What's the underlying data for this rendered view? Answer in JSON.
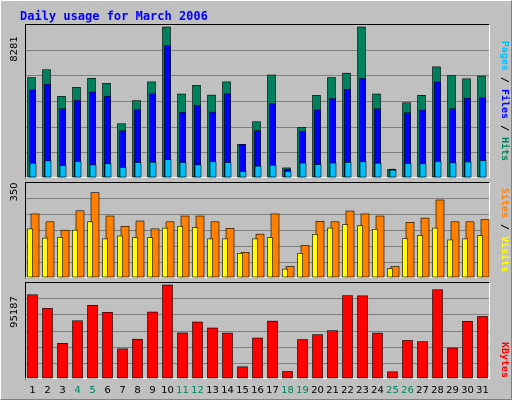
{
  "chart_data": [
    {
      "type": "bar",
      "title": "Daily usage for March 2006",
      "categories": [
        "1",
        "2",
        "3",
        "4",
        "5",
        "6",
        "7",
        "8",
        "9",
        "10",
        "11",
        "12",
        "13",
        "14",
        "15",
        "16",
        "17",
        "18",
        "19",
        "20",
        "21",
        "22",
        "23",
        "24",
        "25",
        "26",
        "27",
        "28",
        "29",
        "30",
        "31"
      ],
      "weekend_days": [
        "4",
        "5",
        "11",
        "12",
        "18",
        "19",
        "25",
        "26"
      ],
      "ymax_label": "8281",
      "ymax": 8281,
      "legend": [
        "Pages",
        "Files",
        "Hits"
      ],
      "series": [
        {
          "name": "Hits",
          "color": "#00805c",
          "values": [
            5490,
            5920,
            4450,
            4950,
            5450,
            5170,
            2940,
            4220,
            5250,
            8281,
            4580,
            5060,
            4520,
            5250,
            1800,
            3050,
            5630,
            500,
            2740,
            4510,
            5490,
            5730,
            8281,
            4580,
            420,
            4100,
            4510,
            6080,
            5600,
            5420,
            5570
          ]
        },
        {
          "name": "Files",
          "color": "#0000ff",
          "values": [
            4810,
            5120,
            3760,
            4230,
            4690,
            4460,
            2550,
            3710,
            4590,
            7250,
            3570,
            3950,
            3580,
            4590,
            1800,
            2560,
            4040,
            420,
            2520,
            3700,
            4330,
            4840,
            5440,
            3760,
            430,
            3540,
            3690,
            5250,
            3770,
            4350,
            4370
          ]
        },
        {
          "name": "Pages",
          "color": "#00c0ff",
          "values": [
            760,
            890,
            630,
            860,
            670,
            730,
            530,
            800,
            810,
            960,
            800,
            670,
            850,
            800,
            300,
            600,
            650,
            300,
            770,
            690,
            770,
            810,
            840,
            760,
            380,
            750,
            730,
            860,
            780,
            830,
            910
          ]
        }
      ]
    },
    {
      "type": "bar",
      "ymax_label": "350",
      "ymax": 350,
      "legend": [
        "Sites",
        "Visits"
      ],
      "series": [
        {
          "name": "Visits",
          "color": "#ff8000",
          "values": [
            240,
            210,
            178,
            252,
            321,
            232,
            193,
            213,
            183,
            210,
            232,
            232,
            210,
            185,
            94,
            163,
            240,
            40,
            120,
            212,
            210,
            251,
            240,
            232,
            40,
            208,
            224,
            293,
            210,
            210,
            218
          ]
        },
        {
          "name": "Sites",
          "color": "#ffff00",
          "values": [
            183,
            148,
            151,
            178,
            210,
            145,
            156,
            150,
            150,
            186,
            193,
            188,
            145,
            145,
            90,
            145,
            150,
            30,
            90,
            162,
            186,
            199,
            195,
            181,
            32,
            146,
            158,
            186,
            141,
            145,
            157
          ]
        }
      ]
    },
    {
      "type": "bar",
      "ymax_label": "95187",
      "ymax": 95187,
      "legend": [
        "KBytes"
      ],
      "series": [
        {
          "name": "KBytes",
          "color": "#ff0000",
          "values": [
            85140,
            71250,
            35510,
            58560,
            74400,
            67280,
            29890,
            39670,
            67500,
            95187,
            46090,
            57270,
            51160,
            46000,
            11430,
            40900,
            58170,
            6660,
            39350,
            44390,
            48460,
            84330,
            84100,
            45950,
            6310,
            38450,
            37240,
            90330,
            30700,
            58050,
            63000
          ]
        }
      ]
    }
  ]
}
